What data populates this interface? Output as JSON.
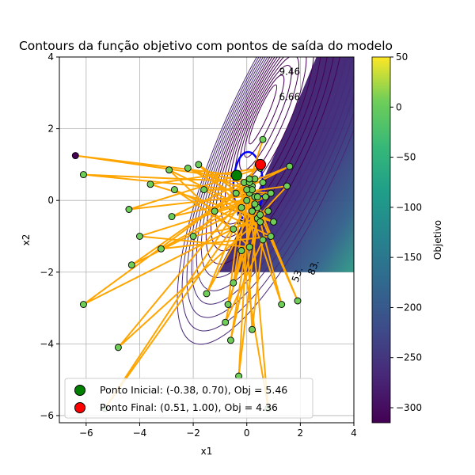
{
  "chart_data": {
    "type": "scatter",
    "title": "Contours da função objetivo com pontos de saída do modelo",
    "xlabel": "x1",
    "ylabel": "x2",
    "xlim": [
      -7,
      4
    ],
    "ylim": [
      -6.2,
      4
    ],
    "xticks": [
      -6,
      -4,
      -2,
      0,
      2,
      4
    ],
    "yticks": [
      -6,
      -4,
      -2,
      0,
      2,
      4
    ],
    "grid": true,
    "legend_position": "lower-left",
    "colorbar": {
      "label": "Objetivo",
      "range": [
        -315,
        50
      ],
      "ticks": [
        50,
        0,
        -50,
        -100,
        -150,
        -200,
        -250,
        -300
      ],
      "colormap": "viridis"
    },
    "contour_labels": [
      {
        "text": "9.46",
        "x": 1.6,
        "y": 3.5
      },
      {
        "text": "6.66",
        "x": 1.6,
        "y": 2.8
      },
      {
        "text": "5.28",
        "x": -0.1,
        "y": -0.4
      },
      {
        "text": "53.",
        "x": 2.0,
        "y": -2.1
      },
      {
        "text": "83.",
        "x": 2.6,
        "y": -1.9
      }
    ],
    "series": [
      {
        "name": "trajectory",
        "color": "#ffa500",
        "points": [
          [
            -0.38,
            0.7
          ],
          [
            -6.4,
            1.25
          ],
          [
            0.6,
            0.5
          ],
          [
            -6.1,
            0.72
          ],
          [
            0.9,
            0.2
          ],
          [
            -4.4,
            -0.25
          ],
          [
            0.5,
            0.9
          ],
          [
            -3.6,
            0.45
          ],
          [
            1.0,
            -0.6
          ],
          [
            -2.9,
            0.85
          ],
          [
            0.1,
            -1.3
          ],
          [
            -4.0,
            -1.0
          ],
          [
            0.7,
            0.1
          ],
          [
            -4.3,
            -1.8
          ],
          [
            0.3,
            0.6
          ],
          [
            -6.1,
            -2.9
          ],
          [
            0.8,
            -0.3
          ],
          [
            -4.8,
            -4.1
          ],
          [
            0.2,
            0.4
          ],
          [
            -5.3,
            -5.8
          ],
          [
            0.3,
            0.1
          ],
          [
            -3.2,
            -1.35
          ],
          [
            0.9,
            -1.0
          ],
          [
            -2.7,
            0.3
          ],
          [
            -0.5,
            -0.8
          ],
          [
            -1.5,
            -2.6
          ],
          [
            0.2,
            -0.3
          ],
          [
            -0.6,
            -3.9
          ],
          [
            0.4,
            -0.5
          ],
          [
            -0.3,
            -4.9
          ],
          [
            0.1,
            0.2
          ],
          [
            0.8,
            -5.8
          ],
          [
            -0.2,
            -1.4
          ],
          [
            -0.8,
            -3.4
          ],
          [
            0.6,
            -1.1
          ],
          [
            0.2,
            -3.6
          ],
          [
            -0.1,
            0.5
          ],
          [
            -0.7,
            -2.9
          ],
          [
            0.4,
            -0.2
          ],
          [
            -0.5,
            -2.3
          ],
          [
            0.0,
            0.0
          ],
          [
            1.3,
            -2.9
          ],
          [
            0.2,
            0.3
          ],
          [
            1.9,
            -2.8
          ],
          [
            0.5,
            -0.4
          ],
          [
            1.5,
            0.4
          ],
          [
            -0.4,
            0.2
          ],
          [
            1.6,
            0.95
          ],
          [
            0.1,
            0.5
          ],
          [
            0.6,
            1.7
          ],
          [
            -0.2,
            -0.2
          ],
          [
            -1.8,
            1.0
          ],
          [
            0.3,
            -0.1
          ],
          [
            -2.2,
            0.9
          ],
          [
            0.0,
            0.3
          ],
          [
            -1.6,
            0.3
          ],
          [
            0.5,
            -0.6
          ],
          [
            -2.0,
            -1.0
          ],
          [
            0.1,
            0.6
          ],
          [
            -2.8,
            -0.45
          ],
          [
            0.4,
            0.1
          ],
          [
            -1.2,
            -0.3
          ],
          [
            0.51,
            1.0
          ]
        ]
      }
    ],
    "start_point": {
      "x": -0.38,
      "y": 0.7,
      "color": "#008000",
      "label": "Ponto Inicial: (-0.38, 0.70), Obj = 5.46"
    },
    "end_point": {
      "x": 0.51,
      "y": 1.0,
      "color": "#ff0000",
      "label": "Ponto Final: (0.51, 1.00), Obj = 4.36"
    }
  }
}
